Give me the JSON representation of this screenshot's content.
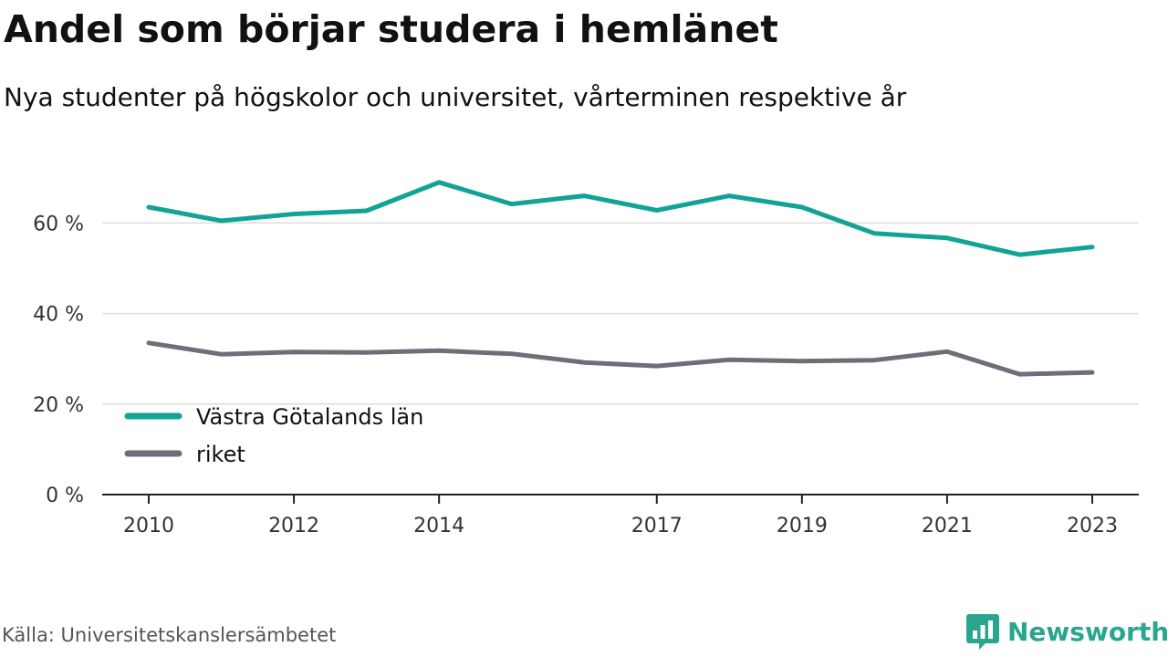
{
  "title": "Andel som börjar studera i hemlänet",
  "subtitle": "Nya studenter på högskolor och universitet, vårterminen respektive år",
  "source": "Källa: Universitetskanslersämbetet",
  "brand": {
    "name": "Newsworthy",
    "icon": "newsworthy-logo-icon",
    "color": "#2aa58f"
  },
  "chart_data": {
    "type": "line",
    "x": [
      2010,
      2011,
      2012,
      2013,
      2014,
      2015,
      2016,
      2017,
      2018,
      2019,
      2020,
      2021,
      2022,
      2023
    ],
    "series": [
      {
        "name": "Västra Götalands län",
        "color": "#10a396",
        "values": [
          63.5,
          60.5,
          62.0,
          62.7,
          69.0,
          64.2,
          66.0,
          62.8,
          66.0,
          63.5,
          57.7,
          56.7,
          53.0,
          54.7
        ]
      },
      {
        "name": "riket",
        "color": "#6e6e78",
        "values": [
          33.5,
          31.0,
          31.5,
          31.4,
          31.8,
          31.1,
          29.2,
          28.4,
          29.8,
          29.5,
          29.7,
          31.6,
          26.6,
          27.0
        ]
      }
    ],
    "x_ticks": [
      2010,
      2012,
      2014,
      2017,
      2019,
      2021,
      2023
    ],
    "x_tick_labels": [
      "2010",
      "2012",
      "2014",
      "2017",
      "2019",
      "2021",
      "2023"
    ],
    "y_ticks": [
      0,
      20,
      40,
      60
    ],
    "y_tick_labels": [
      "0 %",
      "20 %",
      "40 %",
      "60 %"
    ],
    "ylim": [
      0,
      75
    ],
    "xlim": [
      2009.7,
      2023.65
    ],
    "grid": "horizontal",
    "legend": "inside-lower-left"
  }
}
